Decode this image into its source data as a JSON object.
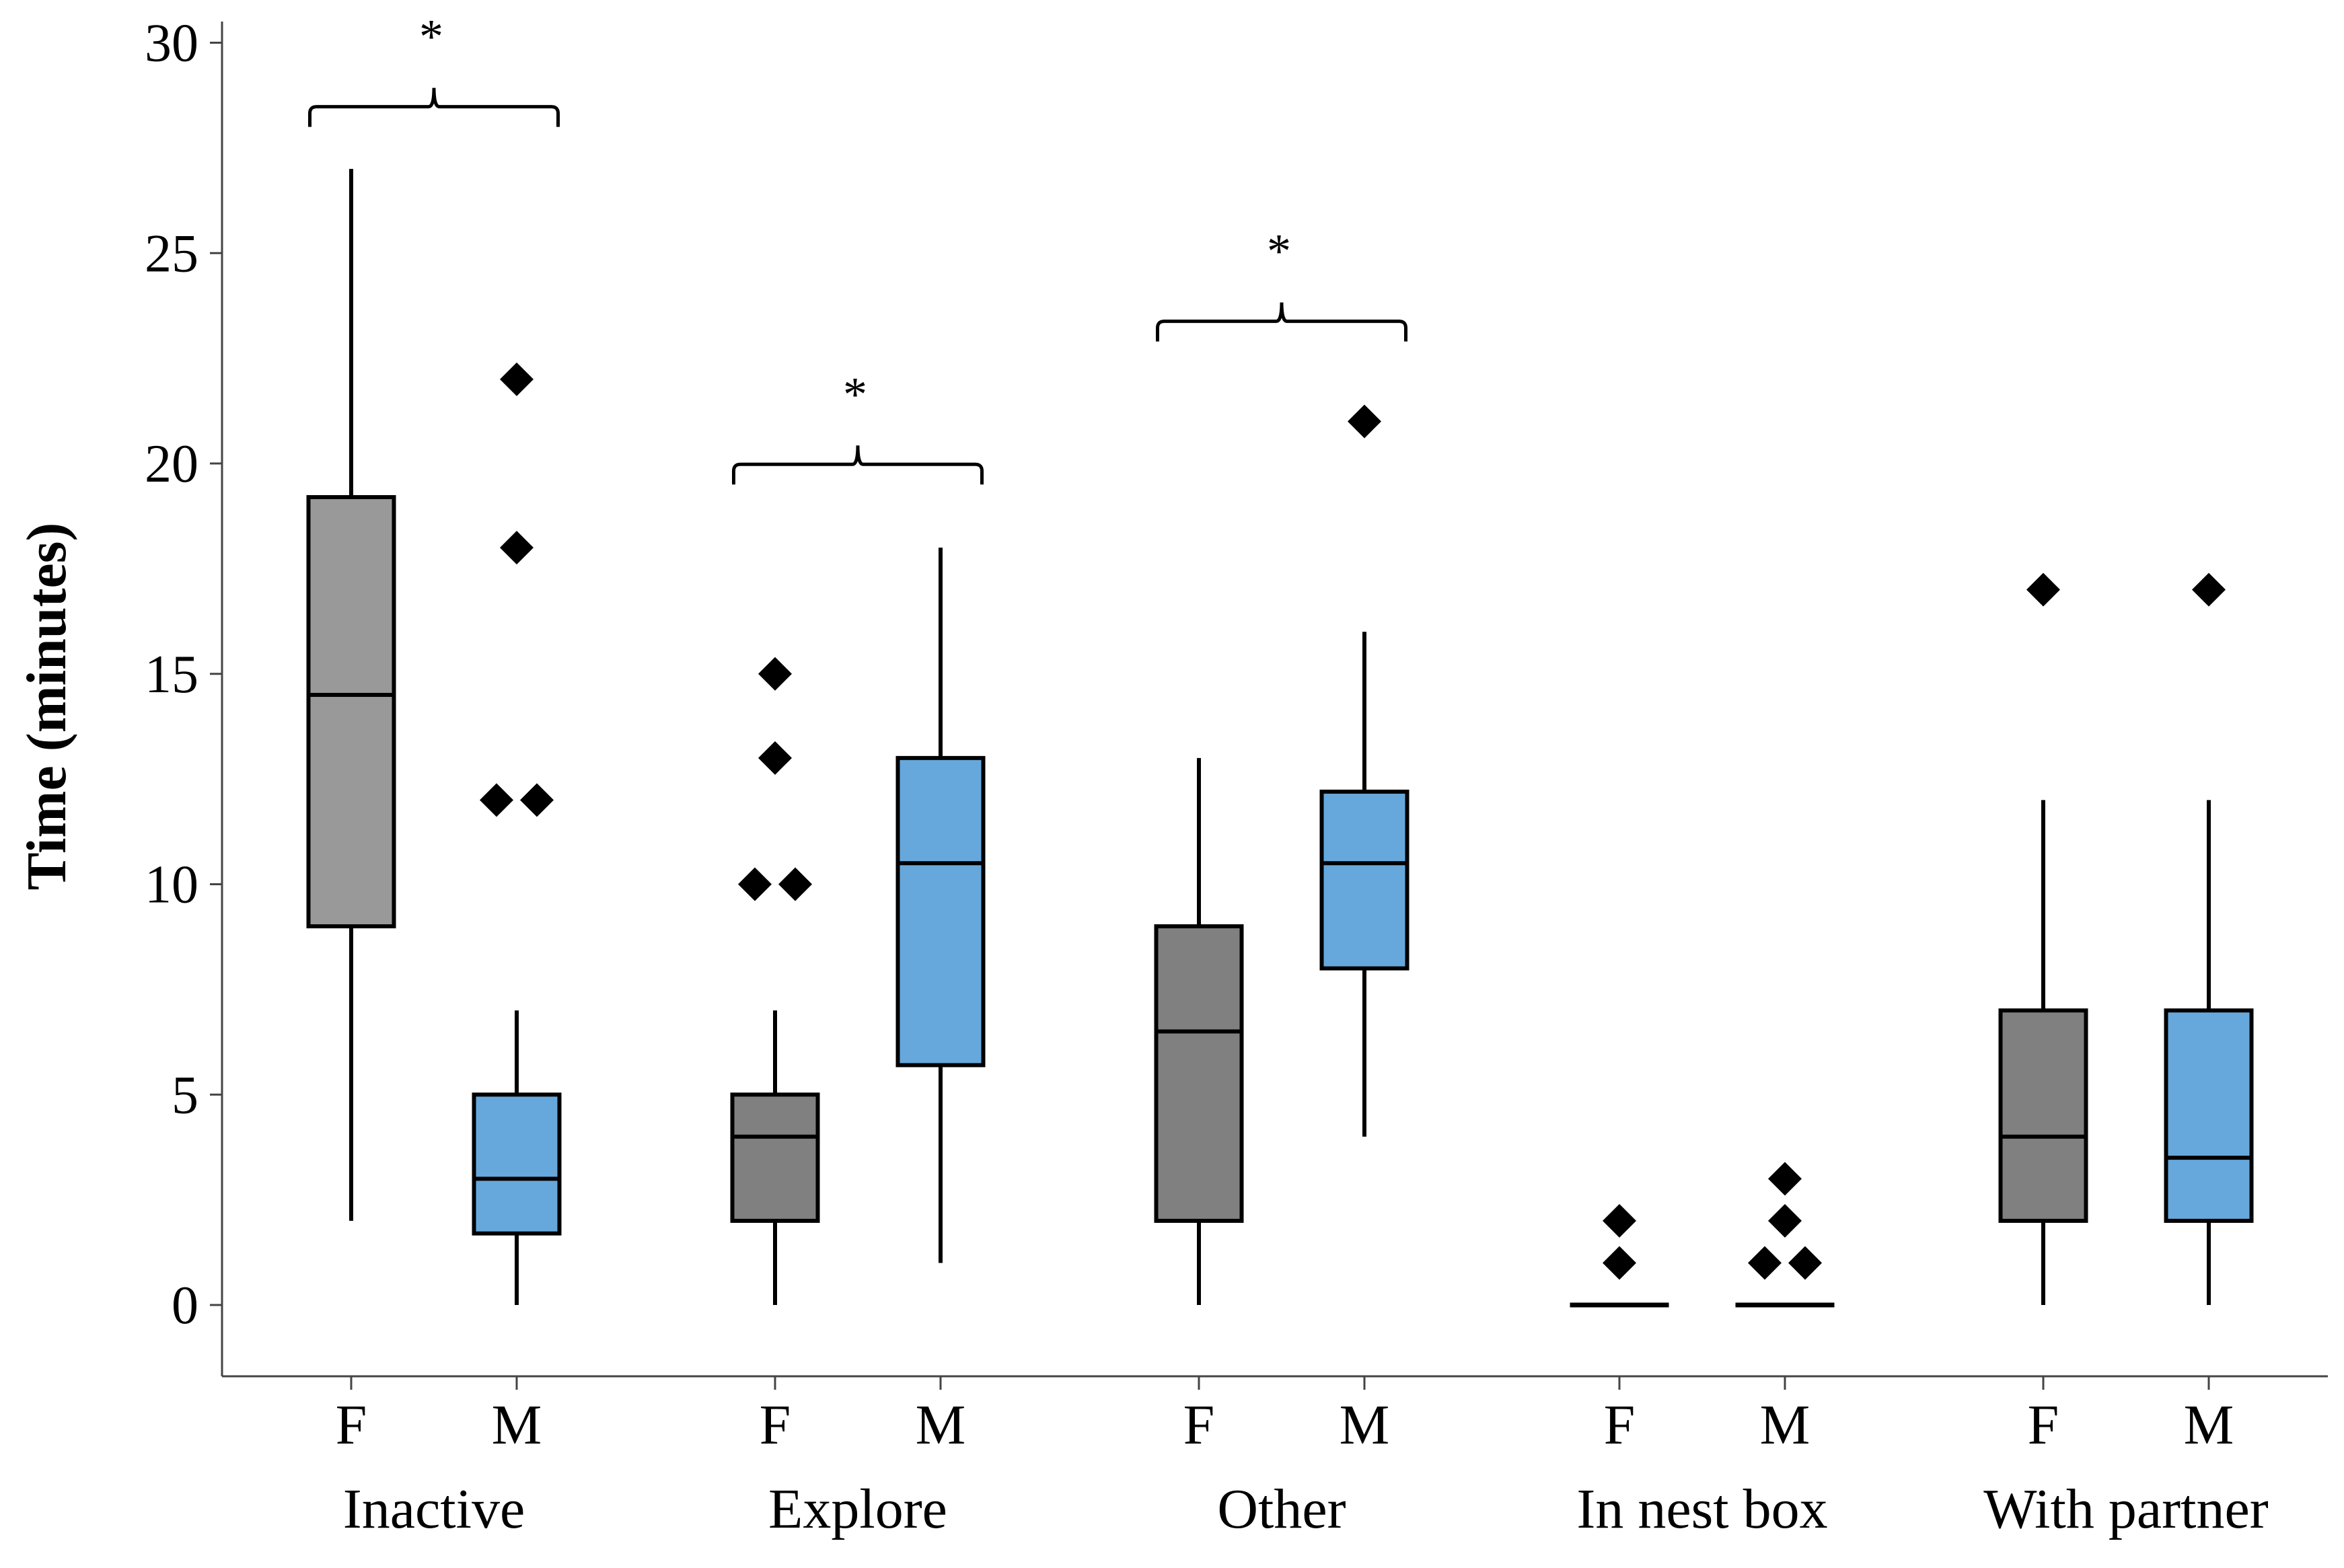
{
  "chart_data": {
    "type": "boxplot",
    "title": "",
    "xlabel": "",
    "ylabel": "Time (minutes)",
    "ylim": [
      -1.7,
      30.5
    ],
    "yticks": [
      0,
      5,
      10,
      15,
      20,
      25,
      30
    ],
    "grid": false,
    "legend": null,
    "colors": {
      "F": "#999999",
      "F_alt": "#808080",
      "M": "#66a8dc",
      "line": "#000000"
    },
    "groups": [
      {
        "name": "Inactive",
        "boxes": [
          {
            "sex": "F",
            "color": "#999999",
            "whisker_low": 2,
            "q1": 9,
            "median": 14.5,
            "q3": 19.2,
            "whisker_high": 27,
            "outliers": []
          },
          {
            "sex": "M",
            "color": "#66a8dc",
            "whisker_low": 0,
            "q1": 1.7,
            "median": 3,
            "q3": 5,
            "whisker_high": 7,
            "outliers": [
              22,
              18,
              12,
              12
            ]
          }
        ],
        "significance": {
          "label": "*",
          "bracket_y": 28
        }
      },
      {
        "name": "Explore",
        "boxes": [
          {
            "sex": "F",
            "color": "#808080",
            "whisker_low": 0,
            "q1": 2,
            "median": 4,
            "q3": 5,
            "whisker_high": 7,
            "outliers": [
              15,
              13,
              10,
              10
            ]
          },
          {
            "sex": "M",
            "color": "#66a8dc",
            "whisker_low": 1,
            "q1": 5.7,
            "median": 10.5,
            "q3": 13,
            "whisker_high": 18,
            "outliers": []
          }
        ],
        "significance": {
          "label": "*",
          "bracket_y": 19.5
        }
      },
      {
        "name": "Other",
        "boxes": [
          {
            "sex": "F",
            "color": "#808080",
            "whisker_low": 0,
            "q1": 2,
            "median": 6.5,
            "q3": 9,
            "whisker_high": 13,
            "outliers": []
          },
          {
            "sex": "M",
            "color": "#66a8dc",
            "whisker_low": 4,
            "q1": 8,
            "median": 10.5,
            "q3": 12.2,
            "whisker_high": 16,
            "outliers": [
              21
            ]
          }
        ],
        "significance": {
          "label": "*",
          "bracket_y": 22.9
        }
      },
      {
        "name": "In nest box",
        "boxes": [
          {
            "sex": "F",
            "color": "#808080",
            "whisker_low": 0,
            "q1": 0,
            "median": 0,
            "q3": 0,
            "whisker_high": 0,
            "outliers": [
              2,
              1
            ]
          },
          {
            "sex": "M",
            "color": "#66a8dc",
            "whisker_low": 0,
            "q1": 0,
            "median": 0,
            "q3": 0,
            "whisker_high": 0,
            "outliers": [
              3,
              2,
              1,
              1
            ]
          }
        ],
        "significance": null
      },
      {
        "name": "With partner",
        "boxes": [
          {
            "sex": "F",
            "color": "#808080",
            "whisker_low": 0,
            "q1": 2,
            "median": 4,
            "q3": 7,
            "whisker_high": 12,
            "outliers": [
              17
            ]
          },
          {
            "sex": "M",
            "color": "#66a8dc",
            "whisker_low": 0,
            "q1": 2,
            "median": 3.5,
            "q3": 7,
            "whisker_high": 12,
            "outliers": [
              17
            ]
          }
        ],
        "significance": null
      }
    ]
  }
}
